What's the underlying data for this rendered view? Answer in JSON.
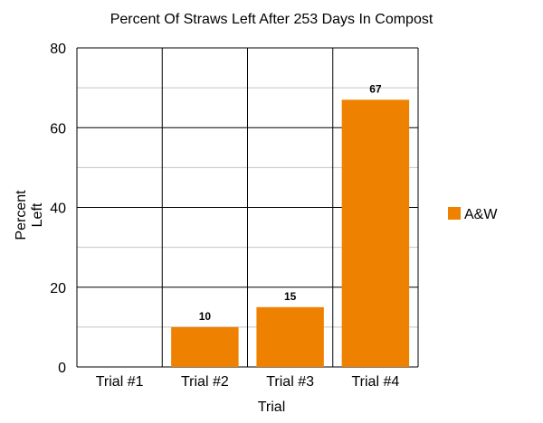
{
  "chart_data": {
    "type": "bar",
    "title": "Percent Of Straws Left After 253 Days In Compost",
    "xlabel": "Trial",
    "ylabel": "Percent\nLeft",
    "categories": [
      "Trial #1",
      "Trial #2",
      "Trial #3",
      "Trial #4"
    ],
    "series": [
      {
        "name": "A&W",
        "color": "#ee8200",
        "values": [
          0,
          10,
          15,
          67
        ],
        "labels": [
          "",
          "10",
          "15",
          "67"
        ]
      }
    ],
    "ylim": [
      0,
      80
    ],
    "yticks": [
      0,
      20,
      40,
      60,
      80
    ],
    "y_minor_step": 10,
    "grid": true,
    "legend_position": "right"
  }
}
